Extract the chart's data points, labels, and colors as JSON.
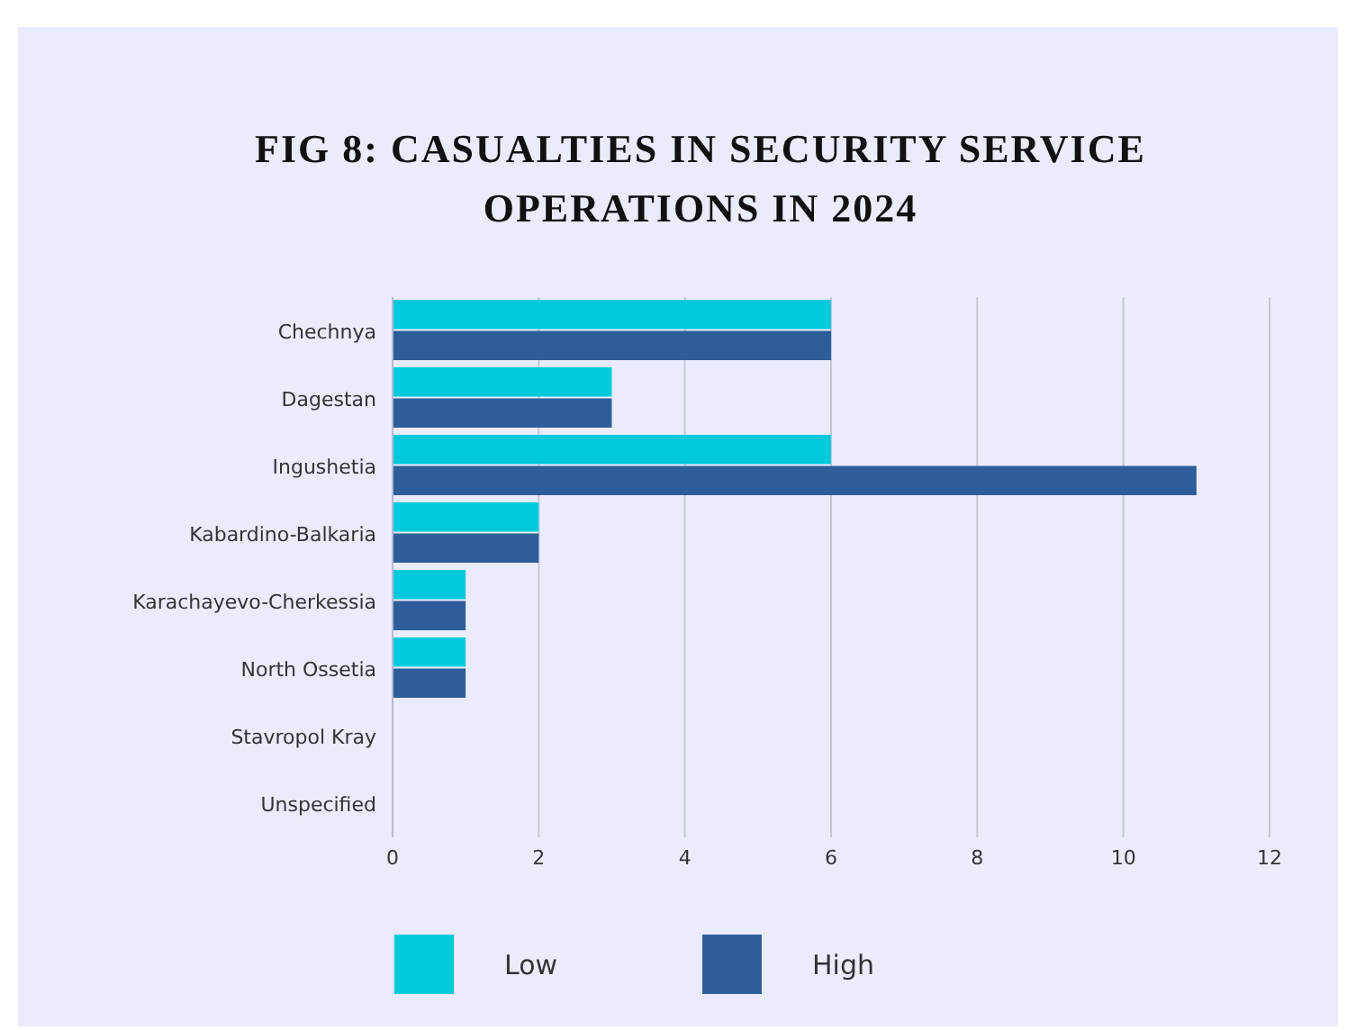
{
  "chart_data": {
    "type": "bar",
    "orientation": "horizontal",
    "title": "FIG 8: CASUALTIES IN SECURITY SERVICE OPERATIONS IN 2024",
    "categories": [
      "Chechnya",
      "Dagestan",
      "Ingushetia",
      "Kabardino-Balkaria",
      "Karachayevo-Cherkessia",
      "North Ossetia",
      "Stavropol Kray",
      "Unspecified"
    ],
    "series": [
      {
        "name": "Low",
        "color": "#00c9dc",
        "values": [
          6,
          3,
          6,
          2,
          1,
          1,
          0,
          0
        ]
      },
      {
        "name": "High",
        "color": "#2e5e99",
        "values": [
          6,
          3,
          11,
          2,
          1,
          1,
          0,
          0
        ]
      }
    ],
    "xlim": [
      0,
      12
    ],
    "xticks": [
      0,
      2,
      4,
      6,
      8,
      10,
      12
    ],
    "grid": "x",
    "legend": "bottom"
  }
}
